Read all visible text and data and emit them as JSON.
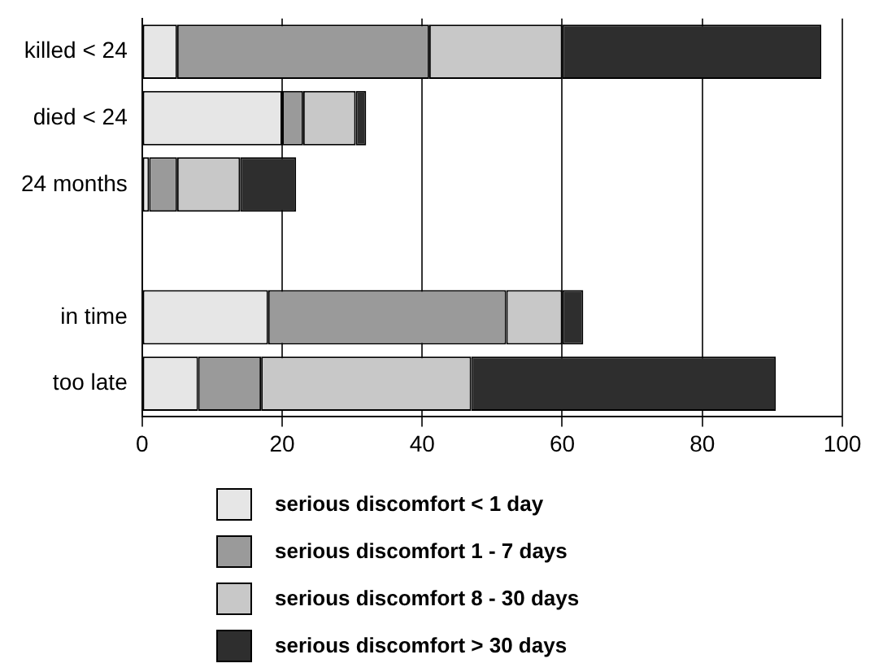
{
  "chart_data": {
    "type": "bar",
    "orientation": "horizontal",
    "stacked": true,
    "categories": [
      "killed < 24",
      "died < 24",
      "24 months",
      null,
      "in time",
      "too late"
    ],
    "series": [
      {
        "name": "serious discomfort <  1 day",
        "color": "#e6e6e6",
        "values": [
          5,
          20,
          1,
          null,
          18,
          8
        ]
      },
      {
        "name": "serious discomfort 1 - 7 days",
        "color": "#9a9a9a",
        "values": [
          36,
          3,
          4,
          null,
          34,
          9
        ]
      },
      {
        "name": "serious discomfort 8 - 30 days",
        "color": "#c8c8c8",
        "values": [
          19,
          7.5,
          9,
          null,
          8,
          30
        ]
      },
      {
        "name": "serious discomfort > 30 days",
        "color": "#2e2e2e",
        "values": [
          37,
          1.5,
          8,
          null,
          3,
          43.5
        ]
      }
    ],
    "xlim": [
      0,
      100
    ],
    "xticks": [
      0,
      20,
      40,
      60,
      80,
      100
    ],
    "grid": "x",
    "legend": "bottom"
  }
}
